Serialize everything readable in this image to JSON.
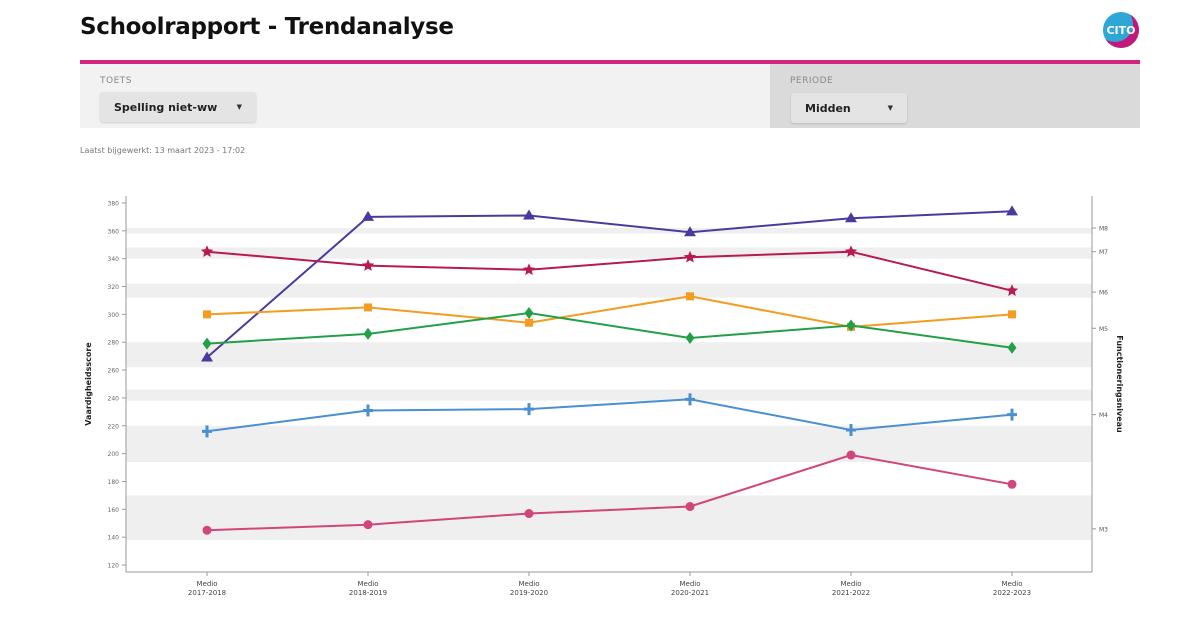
{
  "header": {
    "title": "Schoolrapport - Trendanalyse",
    "logo_text": "CITO"
  },
  "filters": {
    "toets": {
      "label": "TOETS",
      "value": "Spelling niet-ww"
    },
    "periode": {
      "label": "PERIODE",
      "value": "Midden"
    }
  },
  "updated": "Laatst bijgewerkt: 13 maart 2023 - 17:02",
  "colors": {
    "accent": "#d4237a",
    "purple": "#4b3a9e",
    "crimson": "#b8194f",
    "orange": "#f39c1f",
    "green": "#21a048",
    "blue": "#4a8fd0",
    "pink": "#d2457a"
  },
  "chart_data": {
    "type": "line",
    "categories": [
      "Medio 2017-2018",
      "Medio 2018-2019",
      "Medio 2019-2020",
      "Medio 2020-2021",
      "Medio 2021-2022",
      "Medio 2022-2023"
    ],
    "ylabel": "Vaardigheidsscore",
    "y2label": "Functioneringsniveau",
    "ylim": [
      115,
      385
    ],
    "yticks": [
      120,
      140,
      160,
      180,
      200,
      220,
      240,
      260,
      280,
      300,
      320,
      340,
      360,
      380
    ],
    "y2ticks": [
      {
        "label": "M8",
        "value": 362
      },
      {
        "label": "M7",
        "value": 345
      },
      {
        "label": "M6",
        "value": 316
      },
      {
        "label": "M5",
        "value": 290
      },
      {
        "label": "M4",
        "value": 228
      },
      {
        "label": "M3",
        "value": 146
      }
    ],
    "bands": [
      [
        138,
        170
      ],
      [
        194,
        220
      ],
      [
        238,
        246
      ],
      [
        262,
        280
      ],
      [
        312,
        322
      ],
      [
        340,
        348
      ],
      [
        358,
        362
      ]
    ],
    "series": [
      {
        "values": [
          269,
          370,
          371,
          359,
          369,
          374
        ],
        "color": "#4b3a9e",
        "marker": "triangle"
      },
      {
        "values": [
          345,
          335,
          332,
          341,
          345,
          317
        ],
        "color": "#b8194f",
        "marker": "star"
      },
      {
        "values": [
          300,
          305,
          294,
          313,
          291,
          300
        ],
        "color": "#f39c1f",
        "marker": "square"
      },
      {
        "values": [
          279,
          286,
          301,
          283,
          292,
          276
        ],
        "color": "#21a048",
        "marker": "diamond"
      },
      {
        "values": [
          216,
          231,
          232,
          239,
          217,
          228
        ],
        "color": "#4a8fd0",
        "marker": "plus"
      },
      {
        "values": [
          145,
          149,
          157,
          162,
          199,
          178
        ],
        "color": "#d2457a",
        "marker": "circle"
      }
    ]
  }
}
